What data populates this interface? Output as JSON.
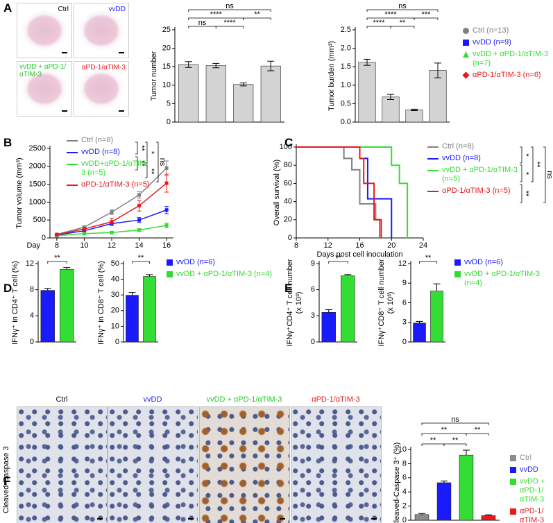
{
  "panel_letters": [
    "A",
    "B",
    "C",
    "D",
    "E",
    "F"
  ],
  "micrographs_a": [
    "Ctrl",
    "vvDD",
    "vvDD + αPD-1/αTIM-3",
    "αPD-1/αTIM-3"
  ],
  "micrographs_f": {
    "row_label": "Cleaved-Caspase 3",
    "columns": [
      "Ctrl",
      "vvDD",
      "vvDD + αPD-1/αTIM-3",
      "αPD-1/αTIM-3"
    ]
  },
  "chart_data": [
    {
      "type": "bar",
      "ylabel": "Tumor number",
      "categories": [
        null,
        null,
        null,
        null
      ],
      "values": [
        15.6,
        15.3,
        10.2,
        15.2
      ],
      "errors": [
        0.8,
        0.6,
        0.4,
        1.3
      ],
      "bar_color": "#d3d3d3",
      "ylim": [
        0,
        25
      ],
      "yticks": [
        0,
        5,
        10,
        15,
        20,
        25
      ],
      "significance": [
        "ns",
        "****",
        "**",
        "ns",
        "****"
      ]
    },
    {
      "type": "bar",
      "ylabel": "Tumor burden (mm³)",
      "categories": [
        null,
        null,
        null,
        null
      ],
      "values": [
        1.62,
        0.68,
        0.33,
        1.4
      ],
      "errors": [
        0.08,
        0.07,
        0.02,
        0.2
      ],
      "bar_color": "#d3d3d3",
      "colors": [
        "#808080",
        "#1a1aff",
        "#33dd33",
        "#e8181b"
      ],
      "legend": [
        "Ctrl (n=13)",
        "vvDD (n=9)",
        "vvDD + αPD-1/αTIM-3 (n=7)",
        "αPD-1/αTIM-3 (n=6)"
      ],
      "ylim": [
        0,
        2.5
      ],
      "yticks": [
        {
          "value": 0,
          "label": "0.0"
        },
        0.5,
        {
          "value": 1,
          "label": "1.0"
        },
        1.5,
        {
          "value": 2,
          "label": "2.0"
        },
        2.5
      ],
      "significance": [
        "ns",
        "****",
        "***",
        "****",
        "**"
      ]
    },
    {
      "type": "line",
      "ylabel": "Tumor volume (mm³)",
      "xlabel": "Day",
      "x": [
        8,
        10,
        12,
        14,
        16
      ],
      "series": [
        {
          "name": "Ctrl (n=8)",
          "color": "#808080",
          "values": [
            100,
            300,
            720,
            1200,
            1950
          ],
          "errors": [
            20,
            40,
            60,
            90,
            200
          ]
        },
        {
          "name": "vvDD (n=8)",
          "color": "#1a1aff",
          "values": [
            80,
            200,
            400,
            500,
            780
          ],
          "errors": [
            15,
            30,
            40,
            70,
            100
          ]
        },
        {
          "name": "vvDD+αPD-1/αTIM-3 (n=5)",
          "color": "#33dd33",
          "values": [
            60,
            120,
            150,
            220,
            350
          ],
          "errors": [
            10,
            15,
            30,
            40,
            60
          ]
        },
        {
          "name": "αPD-1/αTIM-3 (n=5)",
          "color": "#e8181b",
          "values": [
            90,
            250,
            450,
            900,
            1530
          ],
          "errors": [
            15,
            40,
            100,
            150,
            250
          ]
        }
      ],
      "xlim": [
        7.5,
        16.5
      ],
      "xticks": [
        8,
        10,
        12,
        14,
        16
      ],
      "ylim": [
        0,
        2500
      ],
      "yticks": [
        0,
        500,
        1000,
        1500,
        2000,
        2500
      ],
      "significance": [
        "**",
        "**",
        "*",
        "**",
        "ns"
      ]
    },
    {
      "type": "step",
      "ylabel": "Overall survival (%)",
      "xlabel": "Days post cell inoculation",
      "series": [
        {
          "name": "Ctrl (n=8)",
          "color": "#808080",
          "x": [
            8,
            14,
            15,
            16,
            18,
            18.5
          ],
          "values": [
            100,
            87.5,
            75,
            37.5,
            20,
            0
          ]
        },
        {
          "name": "vvDD (n=8)",
          "color": "#1a1aff",
          "x": [
            8,
            16,
            17,
            20
          ],
          "values": [
            100,
            87.5,
            43,
            0
          ]
        },
        {
          "name": "vvDD + αPD-1/αTIM-3 (n=5)",
          "color": "#33dd33",
          "x": [
            8,
            20,
            21,
            22
          ],
          "values": [
            100,
            80,
            60,
            0
          ]
        },
        {
          "name": "αPD-1/αTIM-3 (n=5)",
          "color": "#e8181b",
          "x": [
            8,
            16,
            16.5,
            17.8,
            18.7
          ],
          "values": [
            100,
            87.5,
            60,
            20,
            0
          ]
        }
      ],
      "xlim": [
        8,
        24
      ],
      "xticks": [
        8,
        12,
        16,
        20,
        24
      ],
      "ylim": [
        0,
        100
      ],
      "yticks": [
        0,
        20,
        40,
        60,
        80,
        100
      ],
      "significance": [
        "*",
        "*",
        "**",
        "**",
        "ns"
      ]
    },
    {
      "type": "bar",
      "ylabel": "IFNγ⁺ in CD4⁺ T cell (%)",
      "categories": [
        null,
        null
      ],
      "values": [
        7.9,
        11.1
      ],
      "errors": [
        0.3,
        0.3
      ],
      "colors": [
        "#1a1aff",
        "#33dd33"
      ],
      "ylim": [
        0,
        12
      ],
      "yticks": [
        0,
        4,
        8,
        12
      ],
      "significance": [
        "**"
      ]
    },
    {
      "type": "bar",
      "ylabel": "IFNγ⁺ in CD8⁺ T cell (%)",
      "categories": [
        null,
        null
      ],
      "values": [
        29.8,
        41.8
      ],
      "errors": [
        1.8,
        1.2
      ],
      "colors": [
        "#1a1aff",
        "#33dd33"
      ],
      "legend": [
        "vvDD (n=6)",
        "vvDD + αPD-1/αTIM-3 (n=4)"
      ],
      "ylim": [
        0,
        50
      ],
      "yticks": [
        0,
        10,
        20,
        30,
        40,
        50
      ],
      "significance": [
        "**"
      ]
    },
    {
      "type": "bar",
      "ylabel": [
        "IFNγ⁺CD4⁺ T cell number",
        "(x 10³)"
      ],
      "categories": [
        null,
        null
      ],
      "values": [
        3.4,
        7.6
      ],
      "errors": [
        0.3,
        0.15
      ],
      "colors": [
        "#1a1aff",
        "#33dd33"
      ],
      "ylim": [
        0,
        9
      ],
      "yticks": [
        0,
        3,
        6,
        9
      ],
      "significance": [
        "**"
      ]
    },
    {
      "type": "bar",
      "ylabel": [
        "IFNγ⁺CD8⁺ T cell number",
        "(x 10³)"
      ],
      "categories": [
        null,
        null
      ],
      "values": [
        2.9,
        7.8
      ],
      "errors": [
        0.25,
        1.1
      ],
      "colors": [
        "#1a1aff",
        "#33dd33"
      ],
      "legend": [
        "vvDD (n=6)",
        "vvDD + αPD-1/αTIM-3 (n=4)"
      ],
      "ylim": [
        0,
        12
      ],
      "yticks": [
        0,
        3,
        6,
        9,
        12
      ],
      "significance": [
        "**"
      ]
    },
    {
      "type": "bar",
      "ylabel": "Cleaved-Caspase 3⁺ (%)",
      "categories": [
        null,
        null,
        null,
        null
      ],
      "values": [
        0.8,
        5.3,
        9.2,
        0.65
      ],
      "errors": [
        0.15,
        0.25,
        0.7,
        0.12
      ],
      "colors": [
        "#8c8c8c",
        "#1a1aff",
        "#33dd33",
        "#e8181b"
      ],
      "legend": [
        "Ctrl",
        "vvDD",
        "vvDD + αPD-1/αTIM-3",
        "αPD-1/αTIM-3"
      ],
      "ylim": [
        0,
        10
      ],
      "yticks": [
        0,
        2,
        4,
        6,
        8,
        10
      ],
      "significance": [
        "ns",
        "**",
        "**",
        "**",
        "**"
      ]
    }
  ]
}
